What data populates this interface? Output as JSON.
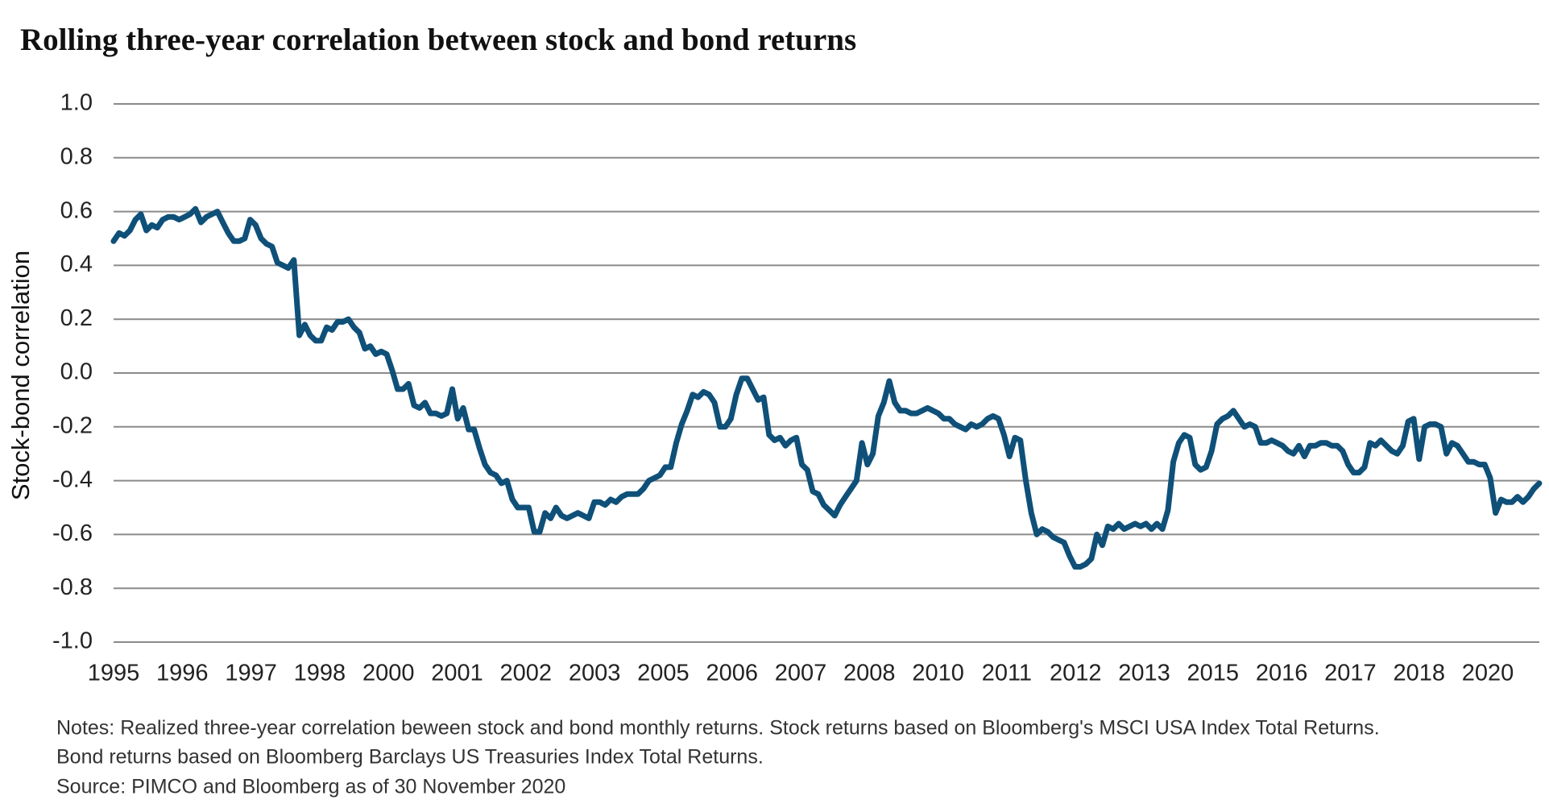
{
  "chart_data": {
    "type": "line",
    "title": "Rolling three-year correlation between stock and bond returns",
    "y_label": "Stock-bond correlation",
    "x_axis_labels": [
      "1995",
      "1996",
      "1997",
      "1998",
      "2000",
      "2001",
      "2002",
      "2003",
      "2005",
      "2006",
      "2007",
      "2008",
      "2010",
      "2011",
      "2012",
      "2013",
      "2015",
      "2016",
      "2017",
      "2018",
      "2020"
    ],
    "ylim": [
      -1.0,
      1.0
    ],
    "yticks": [
      {
        "value": 1.0,
        "label": "1.0"
      },
      {
        "value": 0.8,
        "label": "0.8"
      },
      {
        "value": 0.6,
        "label": "0.6"
      },
      {
        "value": 0.4,
        "label": "0.4"
      },
      {
        "value": 0.2,
        "label": "0.2"
      },
      {
        "value": 0,
        "label": "0.0"
      },
      {
        "value": -0.2,
        "label": "-0.2"
      },
      {
        "value": -0.4,
        "label": "-0.4"
      },
      {
        "value": -0.6,
        "label": "-0.6"
      },
      {
        "value": -0.8,
        "label": "-0.8"
      },
      {
        "value": -1.0,
        "label": "-1.0"
      }
    ],
    "grid": true,
    "series": [
      {
        "color": "#0f5079",
        "values": [
          0.49,
          0.52,
          0.51,
          0.53,
          0.57,
          0.59,
          0.53,
          0.55,
          0.54,
          0.57,
          0.58,
          0.58,
          0.57,
          0.58,
          0.59,
          0.61,
          0.56,
          0.58,
          0.59,
          0.6,
          0.56,
          0.52,
          0.49,
          0.49,
          0.5,
          0.57,
          0.55,
          0.5,
          0.48,
          0.47,
          0.41,
          0.4,
          0.39,
          0.42,
          0.14,
          0.18,
          0.14,
          0.12,
          0.12,
          0.17,
          0.16,
          0.19,
          0.19,
          0.2,
          0.17,
          0.15,
          0.09,
          0.1,
          0.07,
          0.08,
          0.07,
          0.01,
          -0.06,
          -0.06,
          -0.04,
          -0.12,
          -0.13,
          -0.11,
          -0.15,
          -0.15,
          -0.16,
          -0.15,
          -0.06,
          -0.17,
          -0.13,
          -0.21,
          -0.21,
          -0.28,
          -0.34,
          -0.37,
          -0.38,
          -0.41,
          -0.4,
          -0.47,
          -0.5,
          -0.5,
          -0.5,
          -0.59,
          -0.59,
          -0.52,
          -0.54,
          -0.5,
          -0.53,
          -0.54,
          -0.53,
          -0.52,
          -0.53,
          -0.54,
          -0.48,
          -0.48,
          -0.49,
          -0.47,
          -0.48,
          -0.46,
          -0.45,
          -0.45,
          -0.45,
          -0.43,
          -0.4,
          -0.39,
          -0.38,
          -0.35,
          -0.35,
          -0.26,
          -0.19,
          -0.14,
          -0.08,
          -0.09,
          -0.07,
          -0.08,
          -0.11,
          -0.2,
          -0.2,
          -0.17,
          -0.08,
          -0.02,
          -0.02,
          -0.06,
          -0.1,
          -0.09,
          -0.23,
          -0.25,
          -0.24,
          -0.27,
          -0.25,
          -0.24,
          -0.34,
          -0.36,
          -0.44,
          -0.45,
          -0.49,
          -0.51,
          -0.53,
          -0.49,
          -0.46,
          -0.43,
          -0.4,
          -0.26,
          -0.34,
          -0.3,
          -0.16,
          -0.11,
          -0.03,
          -0.11,
          -0.14,
          -0.14,
          -0.15,
          -0.15,
          -0.14,
          -0.13,
          -0.14,
          -0.15,
          -0.17,
          -0.17,
          -0.19,
          -0.2,
          -0.21,
          -0.19,
          -0.2,
          -0.19,
          -0.17,
          -0.16,
          -0.17,
          -0.23,
          -0.31,
          -0.24,
          -0.25,
          -0.4,
          -0.52,
          -0.6,
          -0.58,
          -0.59,
          -0.61,
          -0.62,
          -0.63,
          -0.68,
          -0.72,
          -0.72,
          -0.71,
          -0.69,
          -0.6,
          -0.64,
          -0.57,
          -0.58,
          -0.56,
          -0.58,
          -0.57,
          -0.56,
          -0.57,
          -0.56,
          -0.58,
          -0.56,
          -0.58,
          -0.51,
          -0.33,
          -0.26,
          -0.23,
          -0.24,
          -0.34,
          -0.36,
          -0.35,
          -0.29,
          -0.19,
          -0.17,
          -0.16,
          -0.14,
          -0.17,
          -0.2,
          -0.19,
          -0.2,
          -0.26,
          -0.26,
          -0.25,
          -0.26,
          -0.27,
          -0.29,
          -0.3,
          -0.27,
          -0.31,
          -0.27,
          -0.27,
          -0.26,
          -0.26,
          -0.27,
          -0.27,
          -0.29,
          -0.34,
          -0.37,
          -0.37,
          -0.35,
          -0.26,
          -0.27,
          -0.25,
          -0.27,
          -0.29,
          -0.3,
          -0.27,
          -0.18,
          -0.17,
          -0.32,
          -0.2,
          -0.19,
          -0.19,
          -0.2,
          -0.3,
          -0.26,
          -0.27,
          -0.3,
          -0.33,
          -0.33,
          -0.34,
          -0.34,
          -0.39,
          -0.52,
          -0.47,
          -0.48,
          -0.48,
          -0.46,
          -0.48,
          -0.46,
          -0.43,
          -0.41
        ]
      }
    ],
    "notes": [
      "Notes: Realized three-year correlation beween stock and bond monthly returns. Stock returns based on Bloomberg's MSCI USA  Index Total Returns.",
      "Bond returns based on Bloomberg Barclays US Treasuries Index Total Returns.",
      "Source: PIMCO and Bloomberg as of 30 November 2020"
    ]
  }
}
